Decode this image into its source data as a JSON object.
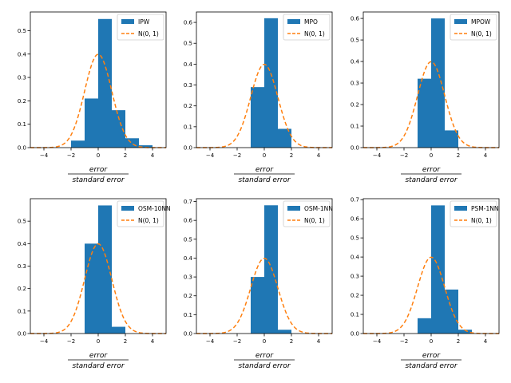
{
  "figure": {
    "bar_color": "#1f77b4",
    "curve_color": "#ff7f0e"
  },
  "chart_data": [
    {
      "type": "bar",
      "legend": {
        "bar_label": "IPW",
        "curve_label": "N(0, 1)",
        "placement": "top-right"
      },
      "xlabel": {
        "numerator": "error",
        "denominator": "standard   error"
      },
      "xlim": [
        -5,
        5
      ],
      "ylim": [
        0,
        0.58
      ],
      "xticks": [
        -4,
        -2,
        0,
        2,
        4
      ],
      "xtick_labels": [
        "−4",
        "−2",
        "0",
        "2",
        "4"
      ],
      "yticks": [
        0,
        0.1,
        0.2,
        0.3,
        0.4,
        0.5
      ],
      "ytick_labels": [
        "0.0",
        "0.1",
        "0.2",
        "0.3",
        "0.4",
        "0.5"
      ],
      "bins": [
        {
          "left": -2,
          "right": -1,
          "value": 0.03
        },
        {
          "left": -1,
          "right": 0,
          "value": 0.21
        },
        {
          "left": 0,
          "right": 1,
          "value": 0.55
        },
        {
          "left": 1,
          "right": 2,
          "value": 0.16
        },
        {
          "left": 2,
          "right": 3,
          "value": 0.04
        },
        {
          "left": 3,
          "right": 4,
          "value": 0.01
        }
      ],
      "curve": {
        "name": "N(0, 1)",
        "mean": 0,
        "sd": 1
      }
    },
    {
      "type": "bar",
      "legend": {
        "bar_label": "MPO",
        "curve_label": "N(0, 1)",
        "placement": "top-right"
      },
      "xlabel": {
        "numerator": "error",
        "denominator": "standard   error"
      },
      "xlim": [
        -5,
        5
      ],
      "ylim": [
        0,
        0.65
      ],
      "xticks": [
        -4,
        -2,
        0,
        2,
        4
      ],
      "xtick_labels": [
        "−4",
        "−2",
        "0",
        "2",
        "4"
      ],
      "yticks": [
        0,
        0.1,
        0.2,
        0.3,
        0.4,
        0.5,
        0.6
      ],
      "ytick_labels": [
        "0.0",
        "0.1",
        "0.2",
        "0.3",
        "0.4",
        "0.5",
        "0.6"
      ],
      "bins": [
        {
          "left": -1,
          "right": 0,
          "value": 0.29
        },
        {
          "left": 0,
          "right": 1,
          "value": 0.62
        },
        {
          "left": 1,
          "right": 2,
          "value": 0.09
        }
      ],
      "curve": {
        "name": "N(0, 1)",
        "mean": 0,
        "sd": 1
      }
    },
    {
      "type": "bar",
      "legend": {
        "bar_label": "MPOW",
        "curve_label": "N(0, 1)",
        "placement": "top-right"
      },
      "xlabel": {
        "numerator": "error",
        "denominator": "standard   error"
      },
      "xlim": [
        -5,
        5
      ],
      "ylim": [
        0,
        0.63
      ],
      "xticks": [
        -4,
        -2,
        0,
        2,
        4
      ],
      "xtick_labels": [
        "−4",
        "−2",
        "0",
        "2",
        "4"
      ],
      "yticks": [
        0,
        0.1,
        0.2,
        0.3,
        0.4,
        0.5,
        0.6
      ],
      "ytick_labels": [
        "0.0",
        "0.1",
        "0.2",
        "0.3",
        "0.4",
        "0.5",
        "0.6"
      ],
      "bins": [
        {
          "left": -1,
          "right": 0,
          "value": 0.32
        },
        {
          "left": 0,
          "right": 1,
          "value": 0.6
        },
        {
          "left": 1,
          "right": 2,
          "value": 0.08
        }
      ],
      "curve": {
        "name": "N(0, 1)",
        "mean": 0,
        "sd": 1
      }
    },
    {
      "type": "bar",
      "legend": {
        "bar_label": "OSM-10NN",
        "curve_label": "N(0, 1)",
        "placement": "top-right"
      },
      "xlabel": {
        "numerator": "error",
        "denominator": "standard   error"
      },
      "xlim": [
        -5,
        5
      ],
      "ylim": [
        0,
        0.6
      ],
      "xticks": [
        -4,
        -2,
        0,
        2,
        4
      ],
      "xtick_labels": [
        "−4",
        "−2",
        "0",
        "2",
        "4"
      ],
      "yticks": [
        0,
        0.1,
        0.2,
        0.3,
        0.4,
        0.5
      ],
      "ytick_labels": [
        "0.0",
        "0.1",
        "0.2",
        "0.3",
        "0.4",
        "0.5"
      ],
      "bins": [
        {
          "left": -1,
          "right": 0,
          "value": 0.4
        },
        {
          "left": 0,
          "right": 1,
          "value": 0.57
        },
        {
          "left": 1,
          "right": 2,
          "value": 0.03
        }
      ],
      "curve": {
        "name": "N(0, 1)",
        "mean": 0,
        "sd": 1
      }
    },
    {
      "type": "bar",
      "legend": {
        "bar_label": "OSM-1NN",
        "curve_label": "N(0, 1)",
        "placement": "top-right"
      },
      "xlabel": {
        "numerator": "error",
        "denominator": "standard   error"
      },
      "xlim": [
        -5,
        5
      ],
      "ylim": [
        0,
        0.715
      ],
      "xticks": [
        -4,
        -2,
        0,
        2,
        4
      ],
      "xtick_labels": [
        "−4",
        "−2",
        "0",
        "2",
        "4"
      ],
      "yticks": [
        0,
        0.1,
        0.2,
        0.3,
        0.4,
        0.5,
        0.6,
        0.7
      ],
      "ytick_labels": [
        "0.0",
        "0.1",
        "0.2",
        "0.3",
        "0.4",
        "0.5",
        "0.6",
        "0.7"
      ],
      "bins": [
        {
          "left": -1,
          "right": 0,
          "value": 0.3
        },
        {
          "left": 0,
          "right": 1,
          "value": 0.68
        },
        {
          "left": 1,
          "right": 2,
          "value": 0.02
        }
      ],
      "curve": {
        "name": "N(0, 1)",
        "mean": 0,
        "sd": 1
      }
    },
    {
      "type": "bar",
      "legend": {
        "bar_label": "PSM-1NN",
        "curve_label": "N(0, 1)",
        "placement": "top-right"
      },
      "xlabel": {
        "numerator": "error",
        "denominator": "standard   error"
      },
      "xlim": [
        -5,
        5
      ],
      "ylim": [
        0,
        0.705
      ],
      "xticks": [
        -4,
        -2,
        0,
        2,
        4
      ],
      "xtick_labels": [
        "−4",
        "−2",
        "0",
        "2",
        "4"
      ],
      "yticks": [
        0,
        0.1,
        0.2,
        0.3,
        0.4,
        0.5,
        0.6,
        0.7
      ],
      "ytick_labels": [
        "0.0",
        "0.1",
        "0.2",
        "0.3",
        "0.4",
        "0.5",
        "0.6",
        "0.7"
      ],
      "bins": [
        {
          "left": -1,
          "right": 0,
          "value": 0.08
        },
        {
          "left": 0,
          "right": 1,
          "value": 0.67
        },
        {
          "left": 1,
          "right": 2,
          "value": 0.23
        },
        {
          "left": 2,
          "right": 3,
          "value": 0.02
        }
      ],
      "curve": {
        "name": "N(0, 1)",
        "mean": 0,
        "sd": 1
      }
    }
  ]
}
